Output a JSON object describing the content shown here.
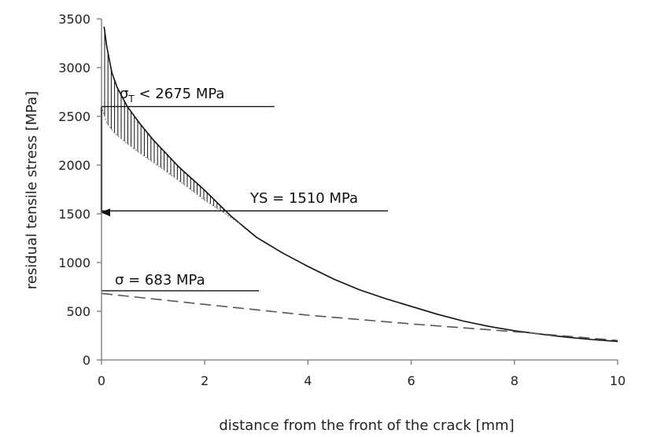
{
  "chart_data": {
    "type": "line",
    "xlabel": "distance from the front of the crack   [mm]",
    "ylabel": "residual tensile stress   [MPa]",
    "xlim": [
      0,
      10
    ],
    "ylim": [
      0,
      3500
    ],
    "x_ticks": [
      "0",
      "2",
      "4",
      "6",
      "8",
      "10"
    ],
    "y_ticks": [
      "0",
      "500",
      "1000",
      "1500",
      "2000",
      "2500",
      "3000",
      "3500"
    ],
    "grid": false,
    "legend": "none",
    "series": [
      {
        "style": "solid",
        "x": [
          0.05,
          0.1,
          0.2,
          0.3,
          0.5,
          0.75,
          1,
          1.5,
          2,
          2.5,
          3,
          3.5,
          4,
          4.5,
          5,
          5.5,
          6,
          6.5,
          7,
          7.5,
          8,
          8.5,
          9,
          9.5,
          10
        ],
        "y": [
          3420,
          3220,
          2950,
          2800,
          2600,
          2420,
          2260,
          1980,
          1740,
          1480,
          1260,
          1100,
          960,
          830,
          720,
          630,
          550,
          470,
          400,
          345,
          300,
          265,
          235,
          210,
          190
        ]
      },
      {
        "style": "dotted",
        "x": [
          0,
          0.1,
          0.25,
          0.5,
          0.75,
          1,
          1.5,
          2,
          2.4,
          2.7
        ],
        "y": [
          2600,
          2430,
          2330,
          2220,
          2120,
          2030,
          1840,
          1640,
          1500,
          1390
        ]
      },
      {
        "style": "dashed",
        "x": [
          0,
          2,
          4,
          6,
          8,
          10
        ],
        "y": [
          683,
          570,
          460,
          370,
          290,
          200
        ]
      }
    ],
    "reference_lines": [
      {
        "y": 2600,
        "x_start": 0,
        "x_end": 3.35,
        "label": "σT < 2675 MPa"
      },
      {
        "y": 1530,
        "x_start": 0,
        "x_end": 5.55,
        "label": "YS = 1510 MPa"
      },
      {
        "y": 710,
        "x_start": 0,
        "x_end": 3.05,
        "label": "σ = 683 MPa"
      }
    ],
    "hatched_region": {
      "x_start": 0,
      "x_end": 2.4
    },
    "arrow": {
      "x": 0,
      "y_from": 2600,
      "y_to": 1530
    }
  }
}
